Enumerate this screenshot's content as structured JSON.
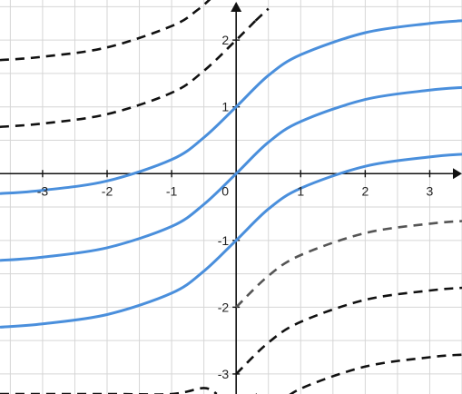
{
  "chart_data": {
    "type": "line",
    "title": "",
    "xlabel": "",
    "ylabel": "",
    "xlim": [
      -3.66,
      3.5
    ],
    "ylim": [
      -3.3,
      2.6
    ],
    "grid": true,
    "grid_step": 0.5,
    "x_ticks": [
      -3,
      -2,
      -1,
      0,
      1,
      2,
      3
    ],
    "x_tick_labels": [
      "-3",
      "-2",
      "-1",
      "0",
      "1",
      "2",
      "3"
    ],
    "y_ticks": [
      -3,
      -2,
      -1,
      1,
      2
    ],
    "y_tick_labels": [
      "-3",
      "-2",
      "-1",
      "1",
      "2"
    ],
    "colors": {
      "solid": "#4a8fdc",
      "dashed": "#111111",
      "dashed_mid": "#555555",
      "grid": "#d6d6d6",
      "axis": "#111111"
    },
    "series": [
      {
        "style": "solid",
        "offset": 1,
        "x": [
          -3.66,
          -3,
          -2,
          -1,
          -0.5,
          0,
          0.5,
          1,
          2,
          3,
          3.5
        ],
        "y": [
          -0.3,
          -0.25,
          -0.11,
          0.21,
          0.54,
          1.0,
          1.47,
          1.78,
          2.11,
          2.25,
          2.29
        ]
      },
      {
        "style": "solid",
        "offset": 0,
        "x": [
          -3.66,
          -3,
          -2,
          -1,
          -0.5,
          0,
          0.5,
          1,
          2,
          3,
          3.5
        ],
        "y": [
          -1.3,
          -1.25,
          -1.11,
          -0.79,
          -0.46,
          0.0,
          0.47,
          0.78,
          1.11,
          1.25,
          1.29
        ]
      },
      {
        "style": "solid",
        "offset": -1,
        "x": [
          -3.66,
          -3,
          -2,
          -1,
          -0.5,
          0,
          0.5,
          1,
          2,
          3,
          3.5
        ],
        "y": [
          -2.3,
          -2.25,
          -2.11,
          -1.79,
          -1.46,
          -1.0,
          -0.53,
          -0.22,
          0.11,
          0.25,
          0.29
        ]
      },
      {
        "style": "dashed",
        "offset": 2,
        "x": [
          -3.66,
          -3,
          -2,
          -1,
          -0.5,
          0,
          0.3
        ],
        "y": [
          0.7,
          0.75,
          0.89,
          1.21,
          1.54,
          2.0,
          2.29
        ]
      },
      {
        "style": "dashed",
        "offset": 3,
        "x": [
          -3.66,
          -3,
          -2,
          -1,
          -0.6,
          -0.3,
          0
        ],
        "y": [
          1.7,
          1.75,
          1.89,
          2.21,
          2.45,
          2.71,
          3.0
        ]
      },
      {
        "style": "dashed",
        "offset": 4,
        "x": [
          0.3,
          0.5
        ],
        "y": [
          2.29,
          2.47
        ]
      },
      {
        "style": "dashed",
        "offset": -2,
        "x": [
          0,
          0.5,
          1,
          2,
          3,
          3.5
        ],
        "y": [
          -2.0,
          -1.53,
          -1.22,
          -0.89,
          -0.75,
          -0.71
        ]
      },
      {
        "style": "dashed",
        "offset": -3,
        "x": [
          0,
          0.5,
          1,
          2,
          3,
          3.5
        ],
        "y": [
          -3.0,
          -2.53,
          -2.22,
          -1.89,
          -1.75,
          -1.71
        ]
      },
      {
        "style": "dashed",
        "offset": -4,
        "x": [
          0.3,
          0.5,
          1,
          2,
          3,
          3.5
        ],
        "y": [
          -3.3,
          -3.53,
          -3.22,
          -2.89,
          -2.75,
          -2.71
        ]
      },
      {
        "style": "dashed",
        "offset": -2,
        "x": [
          -3.66,
          -2,
          -1,
          -0.5,
          -0.3
        ],
        "y": [
          -3.3,
          -3.3,
          -3.3,
          -3.21,
          -3.3
        ]
      }
    ]
  }
}
